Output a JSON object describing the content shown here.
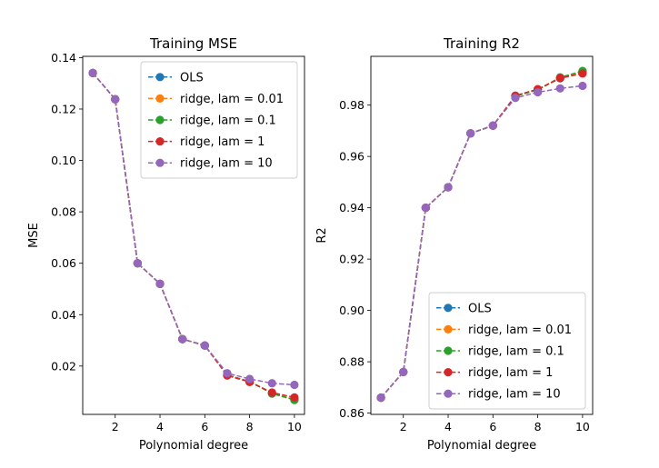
{
  "chart_data": [
    {
      "type": "line",
      "title": "Training MSE",
      "xlabel": "Polynomial degree",
      "ylabel": "MSE",
      "x": [
        1,
        2,
        3,
        4,
        5,
        6,
        7,
        8,
        9,
        10
      ],
      "xlim": [
        0.55,
        10.45
      ],
      "ylim": [
        0.0012,
        0.1405
      ],
      "xticks": [
        2,
        4,
        6,
        8,
        10
      ],
      "xtick_labels": [
        "2",
        "4",
        "6",
        "8",
        "10"
      ],
      "yticks": [
        0.02,
        0.04,
        0.06,
        0.08,
        0.1,
        0.12,
        0.14
      ],
      "ytick_labels": [
        "0.02",
        "0.04",
        "0.06",
        "0.08",
        "0.10",
        "0.12",
        "0.14"
      ],
      "grid": false,
      "legend_position": "upper right",
      "series": [
        {
          "name": "OLS",
          "color": "#1f77b4",
          "values": [
            0.134,
            0.1238,
            0.06,
            0.052,
            0.0305,
            0.028,
            0.0165,
            0.014,
            0.0095,
            0.007
          ]
        },
        {
          "name": "ridge, lam = 0.01",
          "color": "#ff7f0e",
          "values": [
            0.134,
            0.1238,
            0.06,
            0.052,
            0.0305,
            0.028,
            0.0165,
            0.014,
            0.0095,
            0.007
          ]
        },
        {
          "name": "ridge, lam = 0.1",
          "color": "#2ca02c",
          "values": [
            0.134,
            0.1238,
            0.06,
            0.052,
            0.0305,
            0.028,
            0.0165,
            0.014,
            0.0093,
            0.0068
          ]
        },
        {
          "name": "ridge, lam = 1",
          "color": "#d62728",
          "values": [
            0.134,
            0.1238,
            0.06,
            0.052,
            0.0305,
            0.028,
            0.0163,
            0.0138,
            0.0097,
            0.0078
          ]
        },
        {
          "name": "ridge, lam = 10",
          "color": "#9467bd",
          "values": [
            0.134,
            0.1238,
            0.06,
            0.052,
            0.0305,
            0.028,
            0.0172,
            0.015,
            0.0133,
            0.0127
          ]
        }
      ]
    },
    {
      "type": "line",
      "title": "Training R2",
      "xlabel": "Polynomial degree",
      "ylabel": "R2",
      "x": [
        1,
        2,
        3,
        4,
        5,
        6,
        7,
        8,
        9,
        10
      ],
      "xlim": [
        0.55,
        10.45
      ],
      "ylim": [
        0.8595,
        0.999
      ],
      "xticks": [
        2,
        4,
        6,
        8,
        10
      ],
      "xtick_labels": [
        "2",
        "4",
        "6",
        "8",
        "10"
      ],
      "yticks": [
        0.86,
        0.88,
        0.9,
        0.92,
        0.94,
        0.96,
        0.98
      ],
      "ytick_labels": [
        "0.86",
        "0.88",
        "0.90",
        "0.92",
        "0.94",
        "0.96",
        "0.98"
      ],
      "grid": false,
      "legend_position": "lower right",
      "series": [
        {
          "name": "OLS",
          "color": "#1f77b4",
          "values": [
            0.866,
            0.876,
            0.94,
            0.948,
            0.969,
            0.972,
            0.9835,
            0.986,
            0.9905,
            0.993
          ]
        },
        {
          "name": "ridge, lam = 0.01",
          "color": "#ff7f0e",
          "values": [
            0.866,
            0.876,
            0.94,
            0.948,
            0.969,
            0.972,
            0.9835,
            0.986,
            0.9905,
            0.993
          ]
        },
        {
          "name": "ridge, lam = 0.1",
          "color": "#2ca02c",
          "values": [
            0.866,
            0.876,
            0.94,
            0.948,
            0.969,
            0.972,
            0.9835,
            0.986,
            0.9908,
            0.9933
          ]
        },
        {
          "name": "ridge, lam = 1",
          "color": "#d62728",
          "values": [
            0.866,
            0.876,
            0.94,
            0.948,
            0.969,
            0.972,
            0.9837,
            0.9862,
            0.9905,
            0.9923
          ]
        },
        {
          "name": "ridge, lam = 10",
          "color": "#9467bd",
          "values": [
            0.866,
            0.876,
            0.94,
            0.948,
            0.969,
            0.972,
            0.9828,
            0.985,
            0.9865,
            0.9875
          ]
        }
      ]
    }
  ]
}
